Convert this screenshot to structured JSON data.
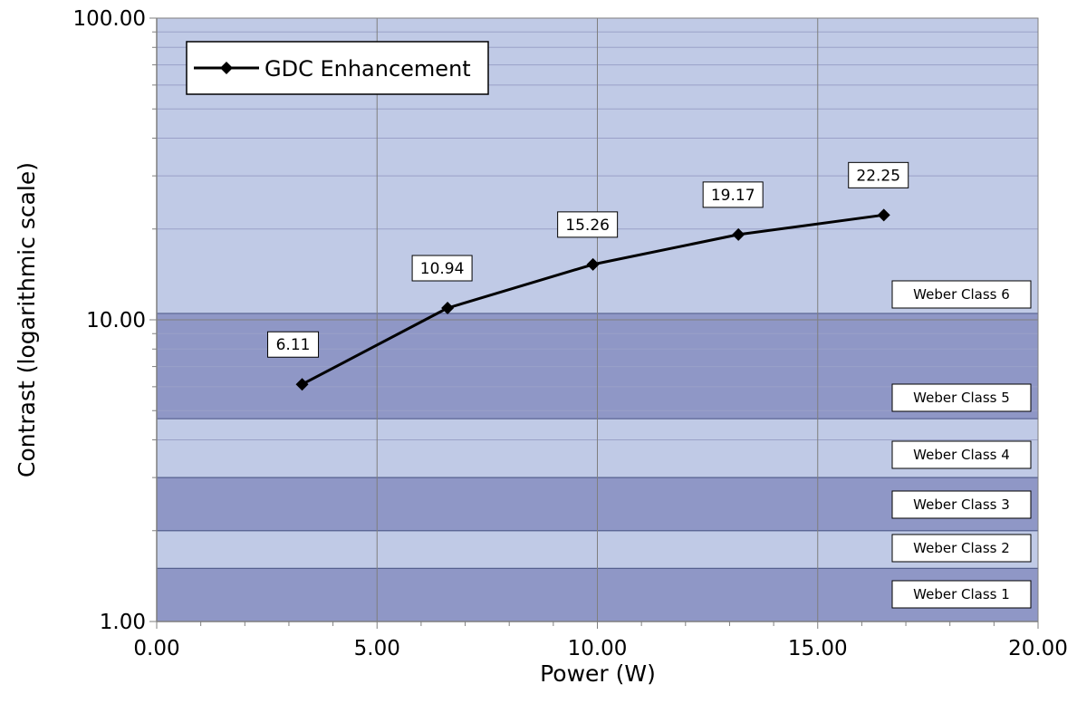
{
  "chart_data": {
    "type": "line",
    "title": "",
    "xlabel": "Power (W)",
    "ylabel": "Contrast (logarithmic scale)",
    "xlim": [
      0,
      20
    ],
    "ylim": [
      1,
      100
    ],
    "y_scale": "log",
    "grid": true,
    "legend": "top-left",
    "x_ticks": [
      "0.00",
      "5.00",
      "10.00",
      "15.00",
      "20.00"
    ],
    "y_ticks": [
      "1.00",
      "10.00",
      "100.00"
    ],
    "series": [
      {
        "name": "GDC Enhancement",
        "color": "#000000",
        "marker": "diamond",
        "x": [
          3.3,
          6.6,
          9.9,
          13.2,
          16.5
        ],
        "values": [
          6.11,
          10.94,
          15.26,
          19.17,
          22.25
        ],
        "labels": [
          "6.11",
          "10.94",
          "15.26",
          "19.17",
          "22.25"
        ]
      }
    ],
    "bands": [
      {
        "label": "Weber Class 1",
        "from": 1.0,
        "to": 1.5,
        "color": "#8f97c6"
      },
      {
        "label": "Weber Class 2",
        "from": 1.5,
        "to": 2.0,
        "color": "#c0cae6"
      },
      {
        "label": "Weber Class 3",
        "from": 2.0,
        "to": 3.0,
        "color": "#8f97c6"
      },
      {
        "label": "Weber Class 4",
        "from": 3.0,
        "to": 4.7,
        "color": "#c0cae6"
      },
      {
        "label": "Weber Class 5",
        "from": 4.7,
        "to": 10.5,
        "color": "#8f97c6"
      },
      {
        "label": "Weber Class 6",
        "from": 10.5,
        "to": 100.0,
        "color": "#c0cae6"
      }
    ]
  }
}
